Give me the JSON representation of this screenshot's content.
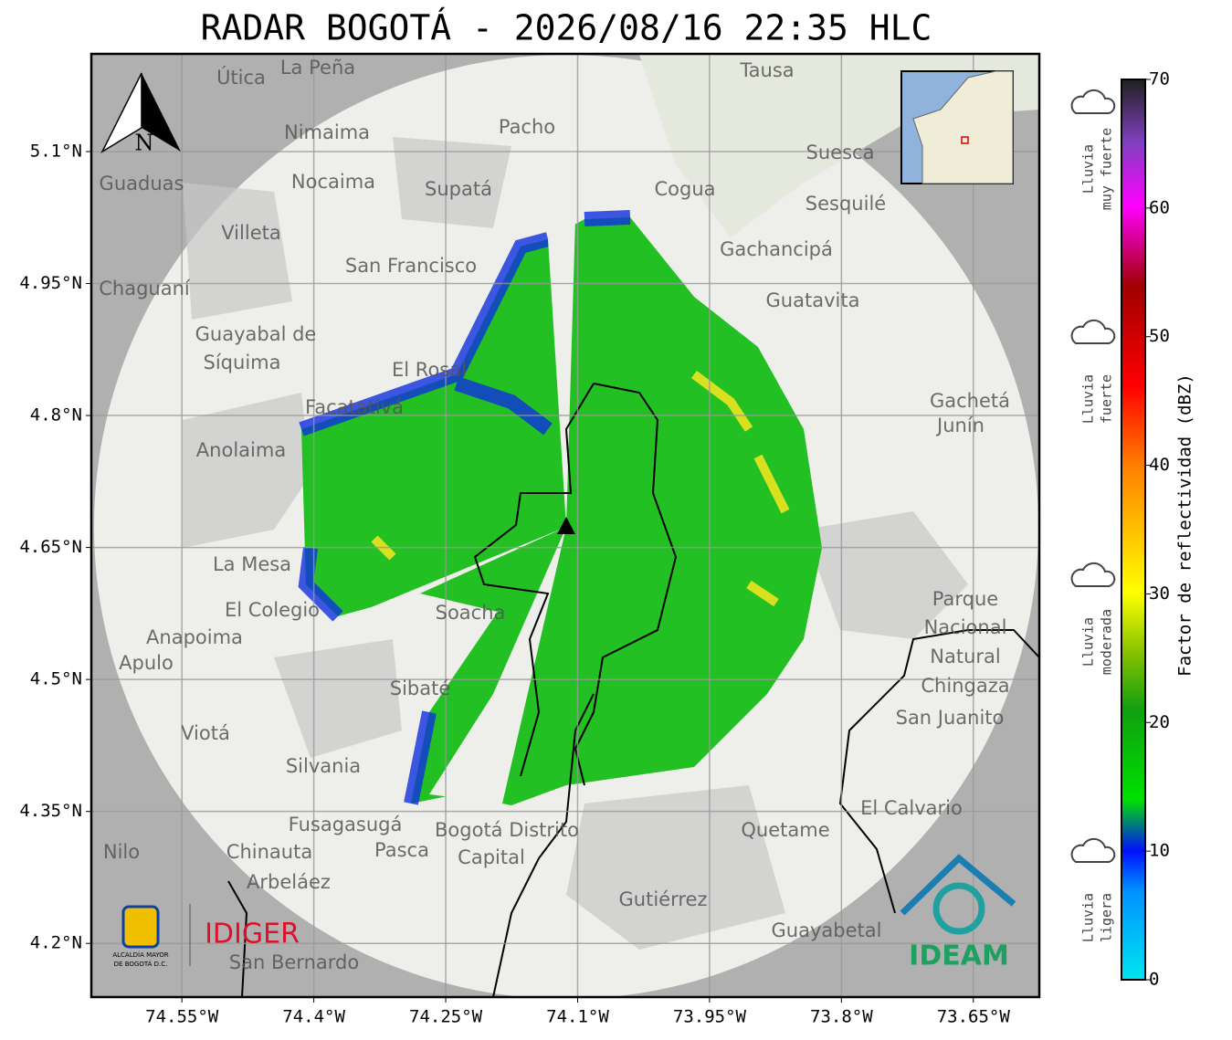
{
  "title": "RADAR BOGOTÁ - 2026/08/16 22:35 HLC",
  "map": {
    "xlim": [
      -74.653,
      -73.575
    ],
    "ylim": [
      4.139,
      5.211
    ],
    "xticks": [
      {
        "value": -74.55,
        "label": "74.55°W"
      },
      {
        "value": -74.4,
        "label": "74.4°W"
      },
      {
        "value": -74.25,
        "label": "74.25°W"
      },
      {
        "value": -74.1,
        "label": "74.1°W"
      },
      {
        "value": -73.95,
        "label": "73.95°W"
      },
      {
        "value": -73.8,
        "label": "73.8°W"
      },
      {
        "value": -73.65,
        "label": "73.65°W"
      }
    ],
    "yticks": [
      {
        "value": 5.1,
        "label": "5.1°N"
      },
      {
        "value": 4.95,
        "label": "4.95°N"
      },
      {
        "value": 4.8,
        "label": "4.8°N"
      },
      {
        "value": 4.65,
        "label": "4.65°N"
      },
      {
        "value": 4.5,
        "label": "4.5°N"
      },
      {
        "value": 4.35,
        "label": "4.35°N"
      },
      {
        "value": 4.2,
        "label": "4.2°N"
      }
    ],
    "north_label": "N",
    "places": [
      "La Peña",
      "Útica",
      "Tausa",
      "Pacho",
      "Nimaima",
      "Suesca",
      "Guaduas",
      "Nocaima",
      "Supatá",
      "Cogua",
      "Sesquilé",
      "Villeta",
      "Gachancipá",
      "San Francisco",
      "Chaguaní",
      "Guatavita",
      "Guayabal de",
      "Síquima",
      "El Rosal",
      "Facatativá",
      "Gachetá",
      "Junín",
      "Anolaima",
      "La Mesa",
      "El Colegio",
      "Soacha",
      "Anapoima",
      "Apulo",
      "Parque",
      "Nacional",
      "Natural",
      "Chingaza",
      "Sibaté",
      "Viotá",
      "San Juanito",
      "Silvania",
      "El Calvario",
      "Fusagasugá",
      "Bogotá Distrito",
      "Capital",
      "Quetame",
      "Chinauta",
      "Pasca",
      "Nilo",
      "Arbeláez",
      "Gutiérrez",
      "Guayabetal",
      "San Bernardo"
    ]
  },
  "colorbar": {
    "label": "Factor de reflectividad (dBZ)",
    "lim": [
      0,
      70
    ],
    "ticks": [
      0,
      10,
      20,
      30,
      40,
      50,
      60,
      70
    ]
  },
  "intensity": [
    [
      "Lluvia",
      "muy fuerte"
    ],
    [
      "Lluvia",
      "fuerte"
    ],
    [
      "Lluvia",
      "moderada"
    ],
    [
      "Lluvia",
      "ligera"
    ]
  ],
  "logos": {
    "alcaldia": [
      "ALCALDÍA MAYOR",
      "DE BOGOTÁ D.C."
    ],
    "idiger": "IDIGER",
    "ideam": "IDEAM"
  }
}
